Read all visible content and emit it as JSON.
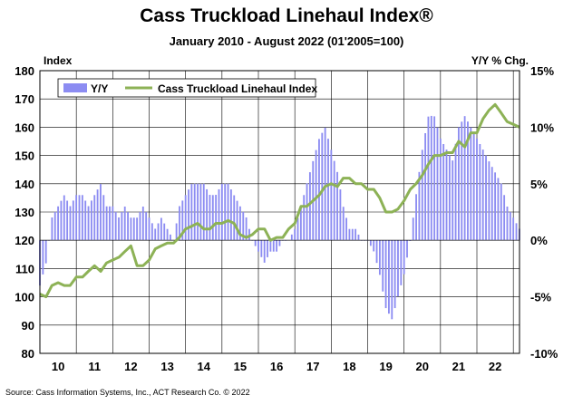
{
  "header": {
    "title": "Cass Truckload Linehaul Index®",
    "subtitle": "January 2010 - August 2022 (01'2005=100)"
  },
  "footer": {
    "source": "Source: Cass Information Systems, Inc., ACT Research Co. © 2022"
  },
  "colors": {
    "index_line": "#8db256",
    "yoy_bars": "#8c8cf2",
    "grid": "#000000"
  },
  "chart_data": {
    "type": "bar",
    "title": "Cass Truckload Linehaul Index®",
    "subtitle": "January 2010 - August 2022 (01'2005=100)",
    "xlabel": "",
    "ylabel_left": "Index",
    "ylabel_right": "Y/Y % Chg.",
    "ylim_left": [
      80,
      180
    ],
    "yticks_left": [
      80,
      90,
      100,
      110,
      120,
      130,
      140,
      150,
      160,
      170,
      180
    ],
    "ylim_right": [
      -10,
      15
    ],
    "yticks_right": [
      "-10%",
      "-5%",
      "0%",
      "5%",
      "10%",
      "15%"
    ],
    "yticks_right_values": [
      -10,
      -5,
      0,
      5,
      10,
      15
    ],
    "x_range": [
      2009.5,
      2022.67
    ],
    "x_categories": [
      "10",
      "11",
      "12",
      "13",
      "14",
      "15",
      "16",
      "17",
      "18",
      "19",
      "20",
      "21",
      "22"
    ],
    "x_category_centers": [
      2010.0,
      2011.0,
      2012.0,
      2013.0,
      2014.0,
      2015.0,
      2016.0,
      2017.0,
      2018.0,
      2019.0,
      2020.0,
      2021.0,
      2022.0
    ],
    "grid": true,
    "legend": {
      "position": "top-left",
      "entries": [
        "Y/Y",
        "Cass Truckload Linehaul Index"
      ]
    },
    "series": [
      {
        "name": "Cass Truckload Linehaul Index",
        "type": "line",
        "axis": "left",
        "x": [
          2009.5,
          2009.67,
          2009.83,
          2010.0,
          2010.17,
          2010.33,
          2010.5,
          2010.67,
          2010.83,
          2011.0,
          2011.17,
          2011.33,
          2011.5,
          2011.67,
          2011.83,
          2012.0,
          2012.17,
          2012.33,
          2012.5,
          2012.67,
          2012.83,
          2013.0,
          2013.17,
          2013.33,
          2013.5,
          2013.67,
          2013.83,
          2014.0,
          2014.17,
          2014.33,
          2014.5,
          2014.67,
          2014.83,
          2015.0,
          2015.17,
          2015.33,
          2015.5,
          2015.67,
          2015.83,
          2016.0,
          2016.17,
          2016.33,
          2016.5,
          2016.67,
          2016.83,
          2017.0,
          2017.17,
          2017.33,
          2017.5,
          2017.67,
          2017.83,
          2018.0,
          2018.17,
          2018.33,
          2018.5,
          2018.67,
          2018.83,
          2019.0,
          2019.17,
          2019.33,
          2019.5,
          2019.67,
          2019.83,
          2020.0,
          2020.17,
          2020.33,
          2020.5,
          2020.67,
          2020.83,
          2021.0,
          2021.17,
          2021.33,
          2021.5,
          2021.67,
          2021.83,
          2022.0,
          2022.17,
          2022.33,
          2022.5,
          2022.67
        ],
        "y": [
          101,
          100,
          104,
          105,
          104,
          104,
          107,
          107,
          109,
          111,
          109,
          112,
          113,
          114,
          116,
          118,
          111,
          111,
          113,
          117,
          118,
          119,
          119,
          121,
          124,
          125,
          126,
          124,
          124,
          126,
          126,
          127,
          126,
          122,
          121,
          122,
          124,
          124,
          120,
          121,
          121,
          124,
          126,
          132,
          132,
          134,
          136,
          139,
          140,
          139,
          142,
          142,
          140,
          140,
          138,
          138,
          135,
          130,
          130,
          131,
          134,
          138,
          140,
          143,
          147,
          150,
          150,
          151,
          151,
          155,
          153,
          158,
          158,
          163,
          166,
          168,
          165,
          162,
          161,
          160
        ]
      },
      {
        "name": "Y/Y",
        "type": "bar",
        "axis": "right",
        "x": [
          2009.5,
          2009.67,
          2009.83,
          2010.0,
          2010.17,
          2010.33,
          2010.5,
          2010.67,
          2010.83,
          2011.0,
          2011.17,
          2011.33,
          2011.5,
          2011.67,
          2011.83,
          2012.0,
          2012.17,
          2012.33,
          2012.5,
          2012.67,
          2012.83,
          2013.0,
          2013.17,
          2013.33,
          2013.5,
          2013.67,
          2013.83,
          2014.0,
          2014.17,
          2014.33,
          2014.5,
          2014.67,
          2014.83,
          2015.0,
          2015.17,
          2015.33,
          2015.5,
          2015.67,
          2015.83,
          2016.0,
          2016.17,
          2016.33,
          2016.5,
          2016.67,
          2016.83,
          2017.0,
          2017.17,
          2017.33,
          2017.5,
          2017.67,
          2017.83,
          2018.0,
          2018.17,
          2018.33,
          2018.5,
          2018.67,
          2018.83,
          2019.0,
          2019.17,
          2019.33,
          2019.5,
          2019.67,
          2019.83,
          2020.0,
          2020.17,
          2020.33,
          2020.5,
          2020.67,
          2020.83,
          2021.0,
          2021.17,
          2021.33,
          2021.5,
          2021.67,
          2021.83,
          2022.0,
          2022.17,
          2022.33,
          2022.5,
          2022.67
        ],
        "values": [
          -4,
          -2,
          2,
          3,
          4,
          3,
          4,
          4,
          3,
          4,
          5,
          3,
          3,
          2,
          3,
          2,
          2,
          3,
          2,
          1,
          2,
          1,
          0,
          3,
          4,
          5,
          5,
          5,
          4,
          4,
          5,
          5,
          4,
          3,
          2,
          0,
          -1,
          -2,
          -1,
          -1,
          0,
          0,
          1,
          3,
          5,
          7,
          9,
          10,
          8,
          6,
          3,
          1,
          1,
          0,
          0,
          -1,
          -3,
          -6,
          -7,
          -5,
          -3,
          0,
          4,
          8,
          11,
          11,
          9,
          8,
          7,
          10,
          11,
          10,
          9,
          8,
          7,
          6,
          5,
          3,
          2,
          1
        ]
      }
    ]
  }
}
